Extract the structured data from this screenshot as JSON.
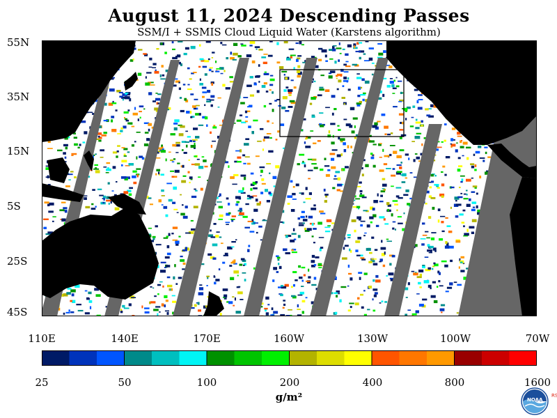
{
  "title": "August 11, 2024  Descending Passes",
  "subtitle": "SSM/I + SSMIS Cloud Liquid Water (Karstens algorithm)",
  "map": {
    "latitude_labels": [
      "55N",
      "35N",
      "15N",
      "5S",
      "25S",
      "45S"
    ],
    "longitude_labels": [
      "110E",
      "140E",
      "170E",
      "160W",
      "130W",
      "100W",
      "70W"
    ],
    "colors": {
      "land": "#000000",
      "no_data_swath_gap": "#666666",
      "clear": "#ffffff",
      "region_box": "#000000"
    }
  },
  "colorbar": {
    "colors": [
      "#001a66",
      "#0033bb",
      "#0055ff",
      "#008a8a",
      "#00bfbf",
      "#00f5f5",
      "#009100",
      "#00c400",
      "#00f000",
      "#b3b300",
      "#dddd00",
      "#ffff00",
      "#ff5500",
      "#ff7700",
      "#ff9900",
      "#990000",
      "#cc0000",
      "#ff0000"
    ],
    "tick_labels": [
      "25",
      "50",
      "100",
      "200",
      "400",
      "800",
      "1600"
    ],
    "units": "g/m²"
  },
  "logo": {
    "icon": "noaa-logo-icon",
    "text": "NOAA",
    "side_mark": "RSS"
  }
}
